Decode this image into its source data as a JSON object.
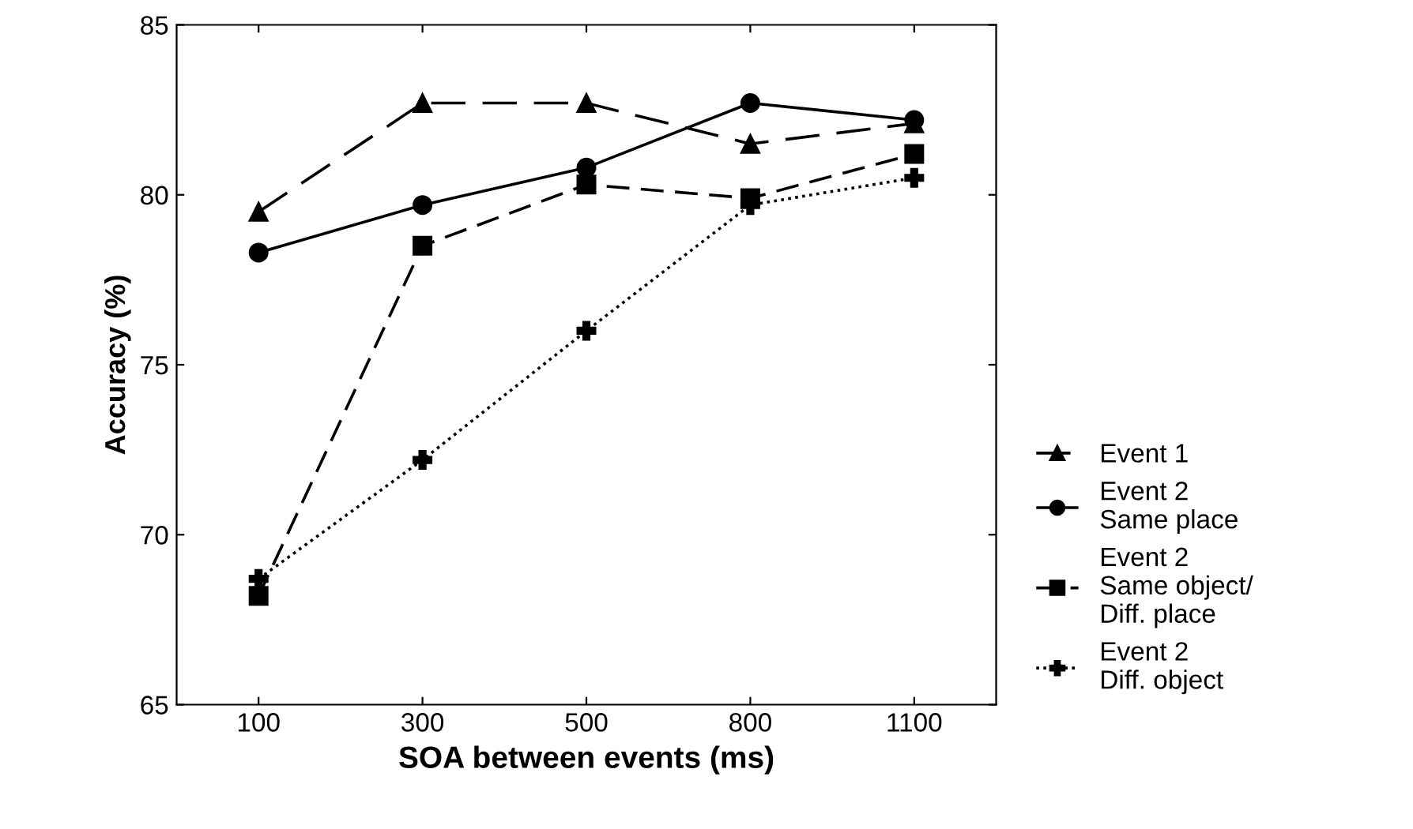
{
  "chart_data": {
    "type": "line",
    "xlabel": "SOA between events (ms)",
    "ylabel": "Accuracy (%)",
    "categories": [
      "100",
      "300",
      "500",
      "800",
      "1100"
    ],
    "ylim": [
      65,
      85
    ],
    "yticks": [
      65,
      70,
      75,
      80,
      85
    ],
    "grid": false,
    "legend": "right",
    "series": [
      {
        "name": "Event 1",
        "color": "#000000",
        "marker": "triangle",
        "line_style": "dashed",
        "values": [
          79.5,
          82.7,
          82.7,
          81.5,
          82.1
        ]
      },
      {
        "name": "Event 2\nSame place",
        "color": "#000000",
        "marker": "circle",
        "line_style": "solid",
        "values": [
          78.3,
          79.7,
          80.8,
          82.7,
          82.2
        ]
      },
      {
        "name": "Event 2\nSame object/\nDiff. place",
        "color": "#000000",
        "marker": "square",
        "line_style": "dashed",
        "values": [
          68.2,
          78.5,
          80.3,
          79.9,
          81.2
        ]
      },
      {
        "name": "Event 2\nDiff. object",
        "color": "#000000",
        "marker": "cross",
        "line_style": "dotted",
        "values": [
          68.7,
          72.2,
          76.0,
          79.7,
          80.5
        ]
      }
    ]
  }
}
